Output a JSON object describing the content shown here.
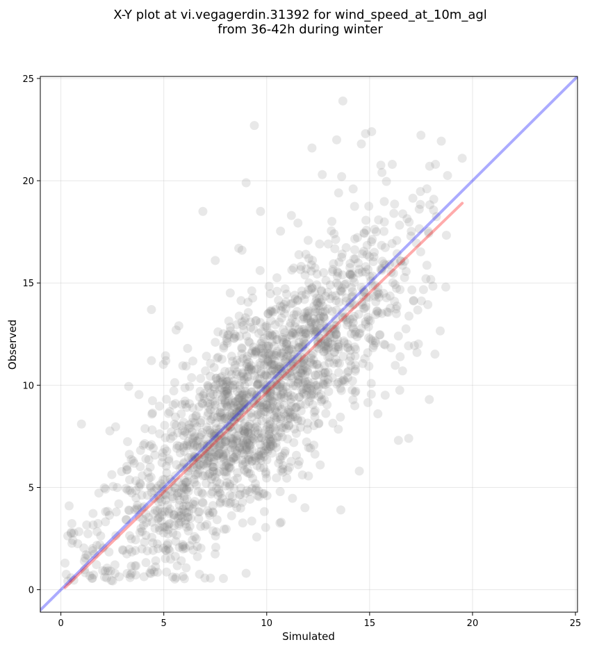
{
  "chart_data": {
    "type": "scatter",
    "title": [
      "X-Y plot at vi.vegagerdin.31392 for wind_speed_at_10m_agl",
      "from 36-42h during winter"
    ],
    "xlabel": "Simulated",
    "ylabel": "Observed",
    "xlim": [
      -1,
      25.1
    ],
    "ylim": [
      -1.1,
      25.1
    ],
    "xticks": [
      0,
      5,
      10,
      15,
      20,
      25
    ],
    "yticks": [
      0,
      5,
      10,
      15,
      20,
      25
    ],
    "grid": true,
    "series": [
      {
        "kind": "scatter",
        "color": "#808080",
        "alpha": 0.18,
        "highlight_points": [
          [
            13.7,
            23.9
          ],
          [
            9.4,
            22.7
          ],
          [
            15.1,
            22.4
          ],
          [
            14.8,
            22.3
          ],
          [
            13.4,
            22.0
          ],
          [
            14.6,
            21.8
          ],
          [
            6.9,
            18.5
          ],
          [
            9.0,
            19.9
          ],
          [
            19.5,
            21.1
          ],
          [
            18.2,
            20.8
          ],
          [
            16.1,
            20.8
          ],
          [
            12.7,
            20.3
          ],
          [
            7.5,
            16.1
          ],
          [
            4.4,
            13.7
          ],
          [
            5.6,
            12.7
          ],
          [
            4.4,
            11.2
          ],
          [
            5.1,
            11.2
          ],
          [
            1.0,
            8.1
          ],
          [
            0.4,
            4.1
          ],
          [
            0.5,
            2.8
          ],
          [
            16.4,
            7.3
          ],
          [
            16.9,
            7.4
          ],
          [
            17.9,
            9.3
          ],
          [
            18.7,
            14.8
          ],
          [
            17.3,
            11.6
          ],
          [
            15.4,
            8.6
          ],
          [
            13.6,
            3.9
          ],
          [
            9.0,
            0.8
          ],
          [
            5.6,
            0.6
          ],
          [
            0.2,
            1.3
          ],
          [
            11.9,
            16.4
          ],
          [
            11.2,
            18.3
          ],
          [
            12.2,
            21.6
          ],
          [
            14.2,
            19.6
          ],
          [
            9.7,
            18.5
          ],
          [
            8.8,
            16.6
          ],
          [
            15.6,
            20.4
          ],
          [
            16.3,
            13.5
          ],
          [
            16.6,
            10.7
          ],
          [
            14.5,
            5.8
          ],
          [
            12.6,
            6.1
          ],
          [
            10.7,
            3.3
          ]
        ]
      },
      {
        "kind": "line",
        "name": "one-to-one",
        "color": "#0000ff",
        "alpha": 0.33,
        "points": [
          [
            -1,
            -1
          ],
          [
            25.1,
            25.1
          ]
        ]
      },
      {
        "kind": "line",
        "name": "regression",
        "color": "#ff0000",
        "alpha": 0.33,
        "points": [
          [
            0.2,
            0.1
          ],
          [
            19.5,
            18.9
          ]
        ]
      }
    ]
  }
}
